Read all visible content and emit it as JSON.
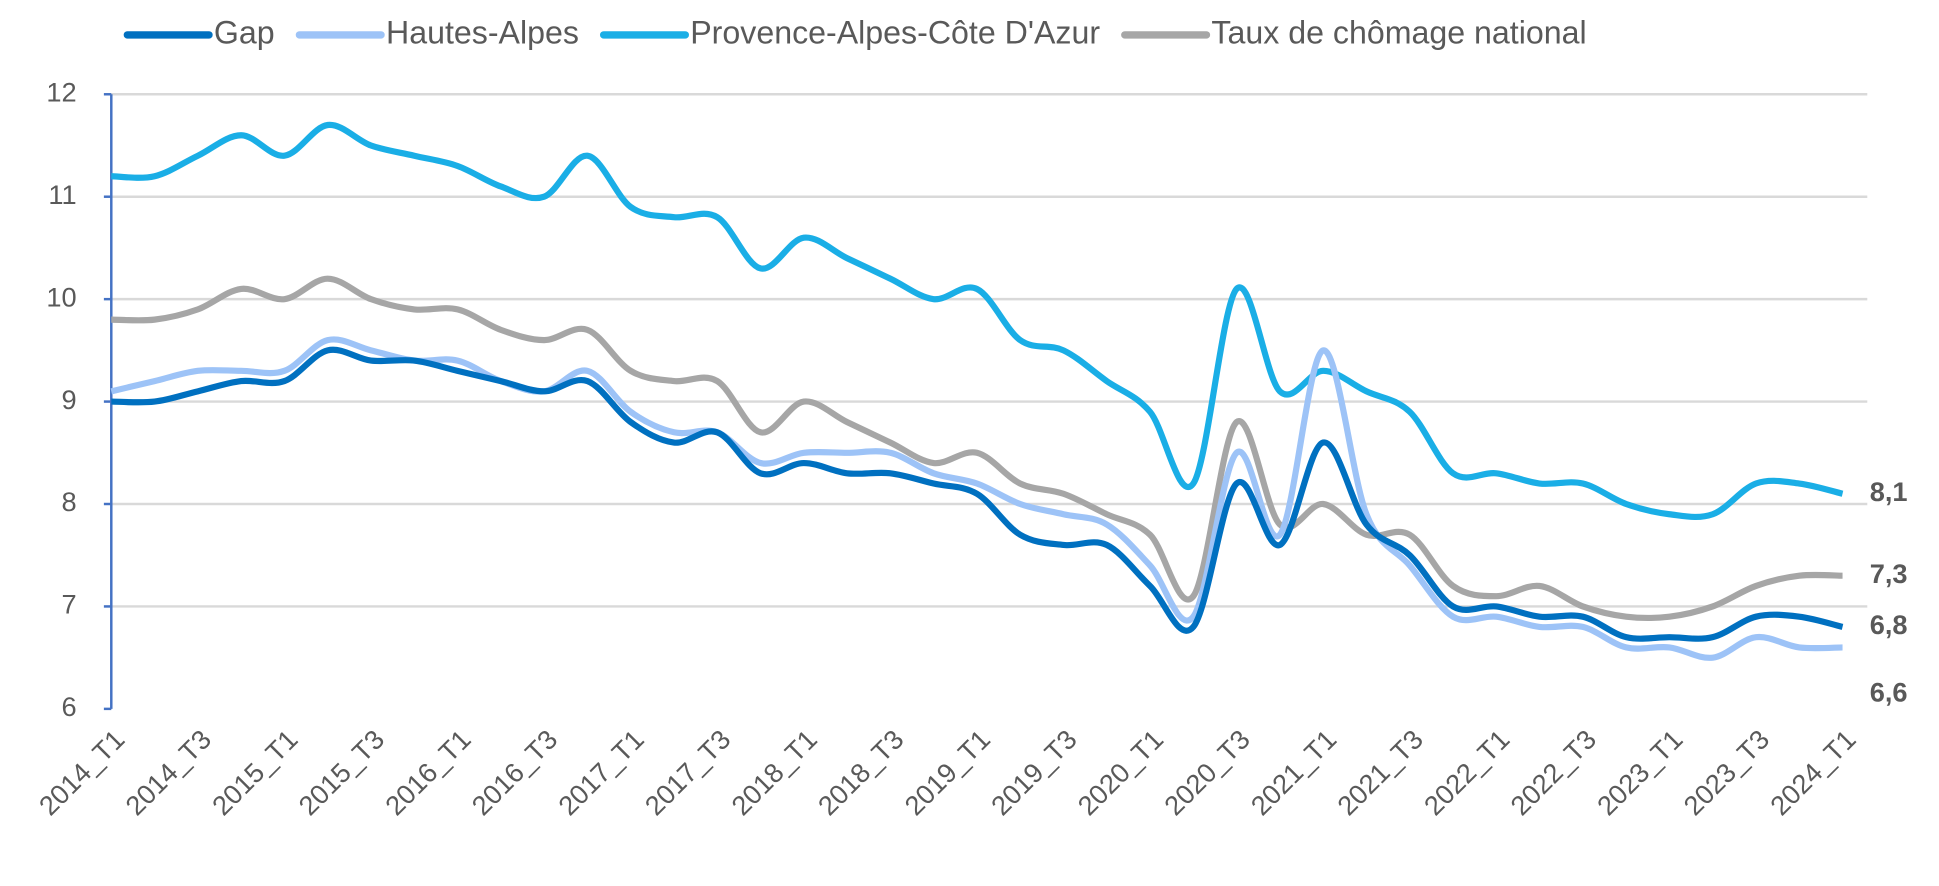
{
  "chart_data": {
    "type": "line",
    "categories": [
      "2014_T1",
      null,
      "2014_T3",
      null,
      "2015_T1",
      null,
      "2015_T3",
      null,
      "2016_T1",
      null,
      "2016_T3",
      null,
      "2017_T1",
      null,
      "2017_T3",
      null,
      "2018_T1",
      null,
      "2018_T3",
      null,
      "2019_T1",
      null,
      "2019_T3",
      null,
      "2020_T1",
      null,
      "2020_T3",
      null,
      "2021_T1",
      null,
      "2021_T3",
      null,
      "2022_T1",
      null,
      "2022_T3",
      null,
      "2023_T1",
      null,
      "2023_T3",
      null,
      "2024_T1"
    ],
    "series": [
      {
        "name": "Gap",
        "color": "#0070c0",
        "label_color": "#1f3864",
        "values": [
          9.0,
          9.0,
          9.1,
          9.2,
          9.2,
          9.5,
          9.4,
          9.4,
          9.3,
          9.2,
          9.1,
          9.2,
          8.8,
          8.6,
          8.7,
          8.3,
          8.4,
          8.3,
          8.3,
          8.2,
          8.1,
          7.7,
          7.6,
          7.6,
          7.2,
          6.8,
          8.2,
          7.6,
          8.6,
          7.8,
          7.5,
          7.0,
          7.0,
          6.9,
          6.9,
          6.7,
          6.7,
          6.7,
          6.9,
          6.9,
          6.8
        ],
        "value_labels": [
          null,
          null,
          null,
          null,
          null,
          null,
          null,
          null,
          null,
          null,
          null,
          null,
          null,
          null,
          null,
          null,
          null,
          null,
          null,
          null,
          null,
          null,
          null,
          null,
          null,
          null,
          null,
          null,
          null,
          null,
          null,
          null,
          null,
          null,
          null,
          null,
          null,
          null,
          null,
          null,
          "6,8"
        ]
      },
      {
        "name": "Hautes-Alpes",
        "color": "#9dc3f7",
        "label_color": "#9dc3f7",
        "values": [
          9.1,
          9.2,
          9.3,
          9.3,
          9.3,
          9.6,
          9.5,
          9.4,
          9.4,
          9.2,
          9.1,
          9.3,
          8.9,
          8.7,
          8.7,
          8.4,
          8.5,
          8.5,
          8.5,
          8.3,
          8.2,
          8.0,
          7.9,
          7.8,
          7.4,
          6.9,
          8.5,
          7.7,
          9.5,
          7.9,
          7.4,
          6.9,
          6.9,
          6.8,
          6.8,
          6.6,
          6.6,
          6.5,
          6.7,
          6.6,
          6.6
        ],
        "value_labels": [
          null,
          null,
          null,
          null,
          null,
          null,
          null,
          null,
          null,
          null,
          null,
          null,
          null,
          null,
          null,
          null,
          null,
          null,
          null,
          null,
          null,
          null,
          null,
          null,
          null,
          null,
          null,
          null,
          null,
          null,
          null,
          null,
          null,
          null,
          null,
          null,
          null,
          null,
          null,
          null,
          "6,6"
        ]
      },
      {
        "name": "Provence-Alpes-Côte D'Azur",
        "color": "#1aaee6",
        "label_color": "#1aaee6",
        "values": [
          11.2,
          11.2,
          11.4,
          11.6,
          11.4,
          11.7,
          11.5,
          11.4,
          11.3,
          11.1,
          11.0,
          11.4,
          10.9,
          10.8,
          10.8,
          10.3,
          10.6,
          10.4,
          10.2,
          10.0,
          10.1,
          9.6,
          9.5,
          9.2,
          8.9,
          8.2,
          10.1,
          9.1,
          9.3,
          9.1,
          8.9,
          8.3,
          8.3,
          8.2,
          8.2,
          8.0,
          7.9,
          7.9,
          8.2,
          8.2,
          8.1
        ],
        "value_labels": [
          null,
          null,
          null,
          null,
          null,
          null,
          null,
          null,
          null,
          null,
          null,
          null,
          null,
          null,
          null,
          null,
          null,
          null,
          null,
          null,
          null,
          null,
          null,
          null,
          null,
          null,
          null,
          null,
          null,
          null,
          null,
          null,
          null,
          null,
          null,
          null,
          null,
          null,
          null,
          null,
          "8,1"
        ]
      },
      {
        "name": "Taux de chômage national",
        "color": "#a6a6a6",
        "label_color": "#7f7f7f",
        "values": [
          9.8,
          9.8,
          9.9,
          10.1,
          10.0,
          10.2,
          10.0,
          9.9,
          9.9,
          9.7,
          9.6,
          9.7,
          9.3,
          9.2,
          9.2,
          8.7,
          9.0,
          8.8,
          8.6,
          8.4,
          8.5,
          8.2,
          8.1,
          7.9,
          7.7,
          7.1,
          8.8,
          7.8,
          8.0,
          7.7,
          7.7,
          7.2,
          7.1,
          7.2,
          7.0,
          6.9,
          6.9,
          7.0,
          7.2,
          7.3,
          7.3
        ],
        "value_labels": [
          null,
          null,
          null,
          null,
          null,
          null,
          null,
          null,
          null,
          null,
          null,
          null,
          null,
          null,
          null,
          null,
          null,
          null,
          null,
          null,
          null,
          null,
          null,
          null,
          null,
          null,
          null,
          null,
          null,
          null,
          null,
          null,
          null,
          null,
          null,
          null,
          null,
          null,
          null,
          null,
          "7,3"
        ]
      }
    ],
    "ylim": [
      6,
      12
    ],
    "yticks": [
      6,
      7,
      8,
      9,
      10,
      11,
      12
    ],
    "grid": true,
    "legend": "top"
  }
}
